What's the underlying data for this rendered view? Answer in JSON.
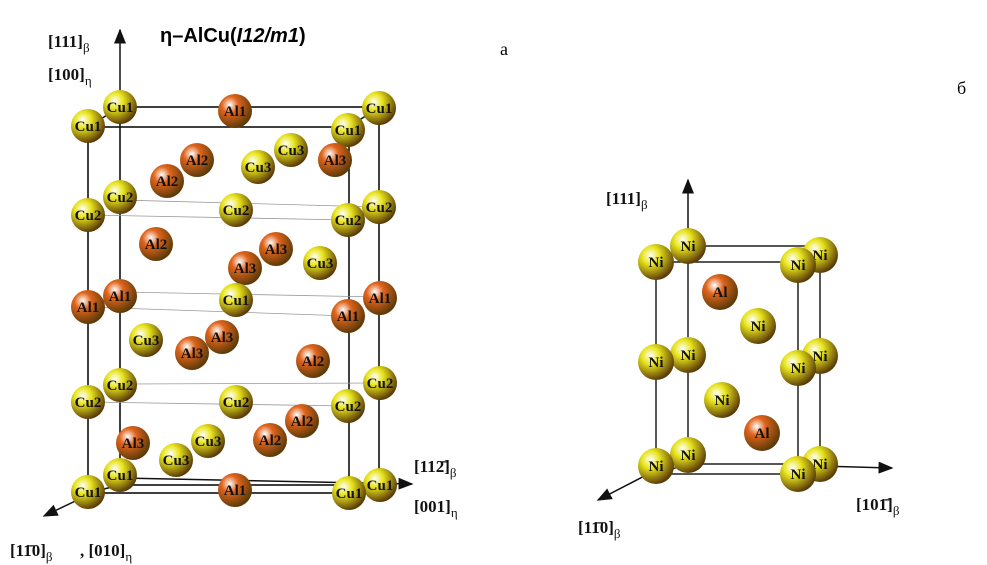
{
  "panels": [
    {
      "letter": "а",
      "title": {
        "prefix": "η–AlCu(",
        "italic": "I12/m1",
        "suffix": ")"
      },
      "axes": [
        {
          "text": "[111]",
          "sub": "β"
        },
        {
          "text": "[100]",
          "sub": "η"
        },
        {
          "text": "[112̄]",
          "sub": "β"
        },
        {
          "text": "[001]",
          "sub": "η"
        },
        {
          "text": "[11̄0]",
          "sub": "β"
        },
        {
          "text": ", [010]",
          "sub": "η"
        }
      ],
      "atoms": [
        {
          "label": "Cu1",
          "color": "#e8e41c"
        },
        {
          "label": "Al1",
          "color": "#e0641c"
        },
        {
          "label": "Cu1",
          "color": "#e8e41c"
        },
        {
          "label": "Cu1",
          "color": "#e8e41c"
        },
        {
          "label": "Cu1",
          "color": "#e8e41c"
        },
        {
          "label": "Al2",
          "color": "#e0641c"
        },
        {
          "label": "Cu3",
          "color": "#e8e41c"
        },
        {
          "label": "Al3",
          "color": "#e0641c"
        },
        {
          "label": "Al2",
          "color": "#e0641c"
        },
        {
          "label": "Cu3",
          "color": "#e8e41c"
        },
        {
          "label": "Cu2",
          "color": "#e8e41c"
        },
        {
          "label": "Cu2",
          "color": "#e8e41c"
        },
        {
          "label": "Cu2",
          "color": "#e8e41c"
        },
        {
          "label": "Cu2",
          "color": "#e8e41c"
        },
        {
          "label": "Cu2",
          "color": "#e8e41c"
        },
        {
          "label": "Al2",
          "color": "#e0641c"
        },
        {
          "label": "Al3",
          "color": "#e0641c"
        },
        {
          "label": "Cu3",
          "color": "#e8e41c"
        },
        {
          "label": "Al3",
          "color": "#e0641c"
        },
        {
          "label": "Al1",
          "color": "#e0641c"
        },
        {
          "label": "Al1",
          "color": "#e0641c"
        },
        {
          "label": "Al1",
          "color": "#e0641c"
        },
        {
          "label": "Cu1",
          "color": "#e8e41c"
        },
        {
          "label": "Al1",
          "color": "#e0641c"
        },
        {
          "label": "Al3",
          "color": "#e0641c"
        },
        {
          "label": "Cu3",
          "color": "#e8e41c"
        },
        {
          "label": "Al3",
          "color": "#e0641c"
        },
        {
          "label": "Al2",
          "color": "#e0641c"
        },
        {
          "label": "Cu2",
          "color": "#e8e41c"
        },
        {
          "label": "Cu2",
          "color": "#e8e41c"
        },
        {
          "label": "Cu2",
          "color": "#e8e41c"
        },
        {
          "label": "Cu2",
          "color": "#e8e41c"
        },
        {
          "label": "Cu2",
          "color": "#e8e41c"
        },
        {
          "label": "Al2",
          "color": "#e0641c"
        },
        {
          "label": "Al3",
          "color": "#e0641c"
        },
        {
          "label": "Cu3",
          "color": "#e8e41c"
        },
        {
          "label": "Al2",
          "color": "#e0641c"
        },
        {
          "label": "Cu3",
          "color": "#e8e41c"
        },
        {
          "label": "Cu1",
          "color": "#e8e41c"
        },
        {
          "label": "Cu1",
          "color": "#e8e41c"
        },
        {
          "label": "Al1",
          "color": "#e0641c"
        },
        {
          "label": "Cu1",
          "color": "#e8e41c"
        },
        {
          "label": "Cu1",
          "color": "#e8e41c"
        }
      ]
    },
    {
      "letter": "б",
      "axes": [
        {
          "text": "[111]",
          "sub": "β"
        },
        {
          "text": "[101̄]",
          "sub": "β"
        },
        {
          "text": "[11̄0]",
          "sub": "β"
        }
      ],
      "atoms": [
        {
          "label": "Ni",
          "color": "#e8e41c"
        },
        {
          "label": "Ni",
          "color": "#e8e41c"
        },
        {
          "label": "Ni",
          "color": "#e8e41c"
        },
        {
          "label": "Ni",
          "color": "#e8e41c"
        },
        {
          "label": "Al",
          "color": "#e0641c"
        },
        {
          "label": "Ni",
          "color": "#e8e41c"
        },
        {
          "label": "Ni",
          "color": "#e8e41c"
        },
        {
          "label": "Ni",
          "color": "#e8e41c"
        },
        {
          "label": "Ni",
          "color": "#e8e41c"
        },
        {
          "label": "Ni",
          "color": "#e8e41c"
        },
        {
          "label": "Ni",
          "color": "#e8e41c"
        },
        {
          "label": "Al",
          "color": "#e0641c"
        },
        {
          "label": "Ni",
          "color": "#e8e41c"
        },
        {
          "label": "Ni",
          "color": "#e8e41c"
        },
        {
          "label": "Ni",
          "color": "#e8e41c"
        },
        {
          "label": "Ni",
          "color": "#e8e41c"
        }
      ]
    }
  ]
}
